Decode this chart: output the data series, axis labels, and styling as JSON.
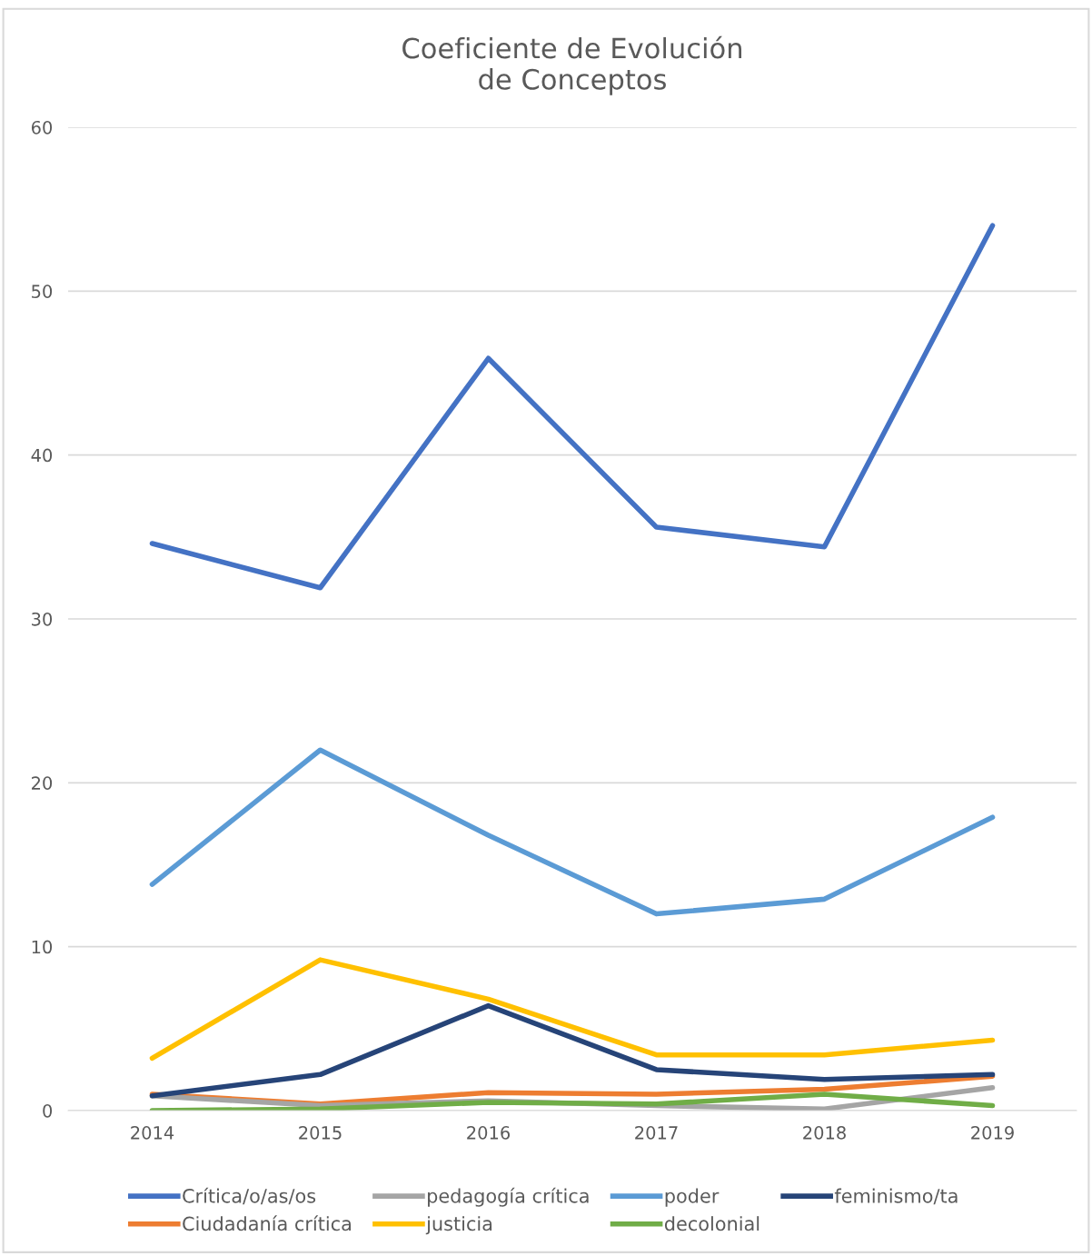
{
  "chart_data": {
    "type": "line",
    "title": "Coeficiente de Evolución\nde Conceptos",
    "categories": [
      "2014",
      "2015",
      "2016",
      "2017",
      "2018",
      "2019"
    ],
    "ylim": [
      0,
      60
    ],
    "yticks": [
      0,
      10,
      20,
      30,
      40,
      50,
      60
    ],
    "grid": "y",
    "legend": "bottom",
    "marker": "none",
    "line_style": "solid",
    "series": [
      {
        "name": "Crítica/o/as/os",
        "color": "#4472c4",
        "values": [
          34.6,
          31.9,
          45.9,
          35.6,
          34.4,
          54.0
        ]
      },
      {
        "name": "Ciudadanía crítica",
        "color": "#ed7d31",
        "values": [
          1.0,
          0.4,
          1.1,
          1.0,
          1.3,
          2.1
        ]
      },
      {
        "name": "pedagogía crítica",
        "color": "#a5a5a5",
        "values": [
          0.9,
          0.3,
          0.6,
          0.3,
          0.1,
          1.4
        ]
      },
      {
        "name": "justicia",
        "color": "#ffc000",
        "values": [
          3.2,
          9.2,
          6.8,
          3.4,
          3.4,
          4.3
        ]
      },
      {
        "name": "poder",
        "color": "#5b9bd5",
        "values": [
          13.8,
          22.0,
          16.8,
          12.0,
          12.9,
          17.9
        ]
      },
      {
        "name": "decolonial",
        "color": "#70ad47",
        "values": [
          0.0,
          0.1,
          0.5,
          0.4,
          1.0,
          0.3
        ]
      },
      {
        "name": "feminismo/ta",
        "color": "#264478",
        "values": [
          0.9,
          2.2,
          6.4,
          2.5,
          1.9,
          2.2
        ]
      }
    ]
  }
}
